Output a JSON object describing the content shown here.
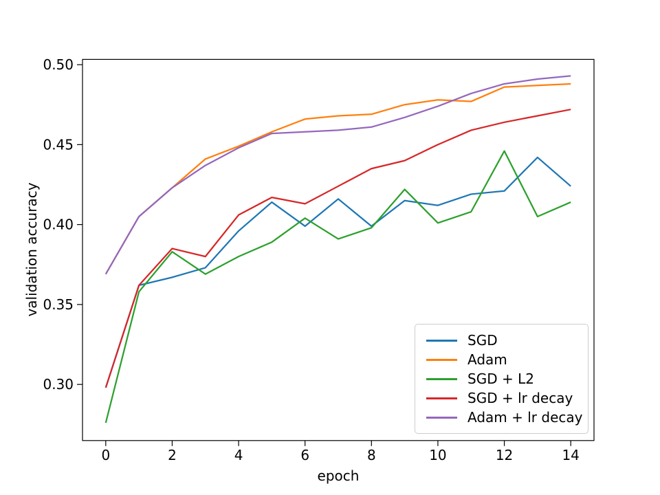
{
  "chart_data": {
    "type": "line",
    "title": "",
    "xlabel": "epoch",
    "ylabel": "validation accuracy",
    "x": [
      0,
      1,
      2,
      3,
      4,
      5,
      6,
      7,
      8,
      9,
      10,
      11,
      12,
      13,
      14
    ],
    "series": [
      {
        "name": "SGD",
        "color": "#1f77b4",
        "values": [
          0.298,
          0.362,
          0.367,
          0.373,
          0.396,
          0.414,
          0.399,
          0.416,
          0.399,
          0.415,
          0.412,
          0.419,
          0.421,
          0.442,
          0.424
        ]
      },
      {
        "name": "Adam",
        "color": "#ff7f0e",
        "values": [
          0.369,
          0.405,
          0.423,
          0.441,
          0.449,
          0.458,
          0.466,
          0.468,
          0.469,
          0.475,
          0.478,
          0.477,
          0.486,
          0.487,
          0.488
        ]
      },
      {
        "name": "SGD + L2",
        "color": "#2ca02c",
        "values": [
          0.276,
          0.358,
          0.383,
          0.369,
          0.38,
          0.389,
          0.404,
          0.391,
          0.398,
          0.422,
          0.401,
          0.408,
          0.446,
          0.405,
          0.414
        ]
      },
      {
        "name": "SGD + lr decay",
        "color": "#d62728",
        "values": [
          0.298,
          0.362,
          0.385,
          0.38,
          0.406,
          0.417,
          0.413,
          0.424,
          0.435,
          0.44,
          0.45,
          0.459,
          0.464,
          0.468,
          0.472
        ]
      },
      {
        "name": "Adam + lr decay",
        "color": "#9467bd",
        "values": [
          0.369,
          0.405,
          0.423,
          0.437,
          0.448,
          0.457,
          0.458,
          0.459,
          0.461,
          0.467,
          0.474,
          0.482,
          0.488,
          0.491,
          0.493
        ]
      }
    ],
    "xlim": [
      -0.7,
      14.7
    ],
    "ylim": [
      0.2649,
      0.5033
    ],
    "xticks": [
      0,
      2,
      4,
      6,
      8,
      10,
      12,
      14
    ],
    "yticks": [
      0.3,
      0.35,
      0.4,
      0.45,
      0.5
    ],
    "ytick_labels": [
      "0.30",
      "0.35",
      "0.40",
      "0.45",
      "0.50"
    ],
    "grid": false,
    "legend_position": "lower right"
  }
}
